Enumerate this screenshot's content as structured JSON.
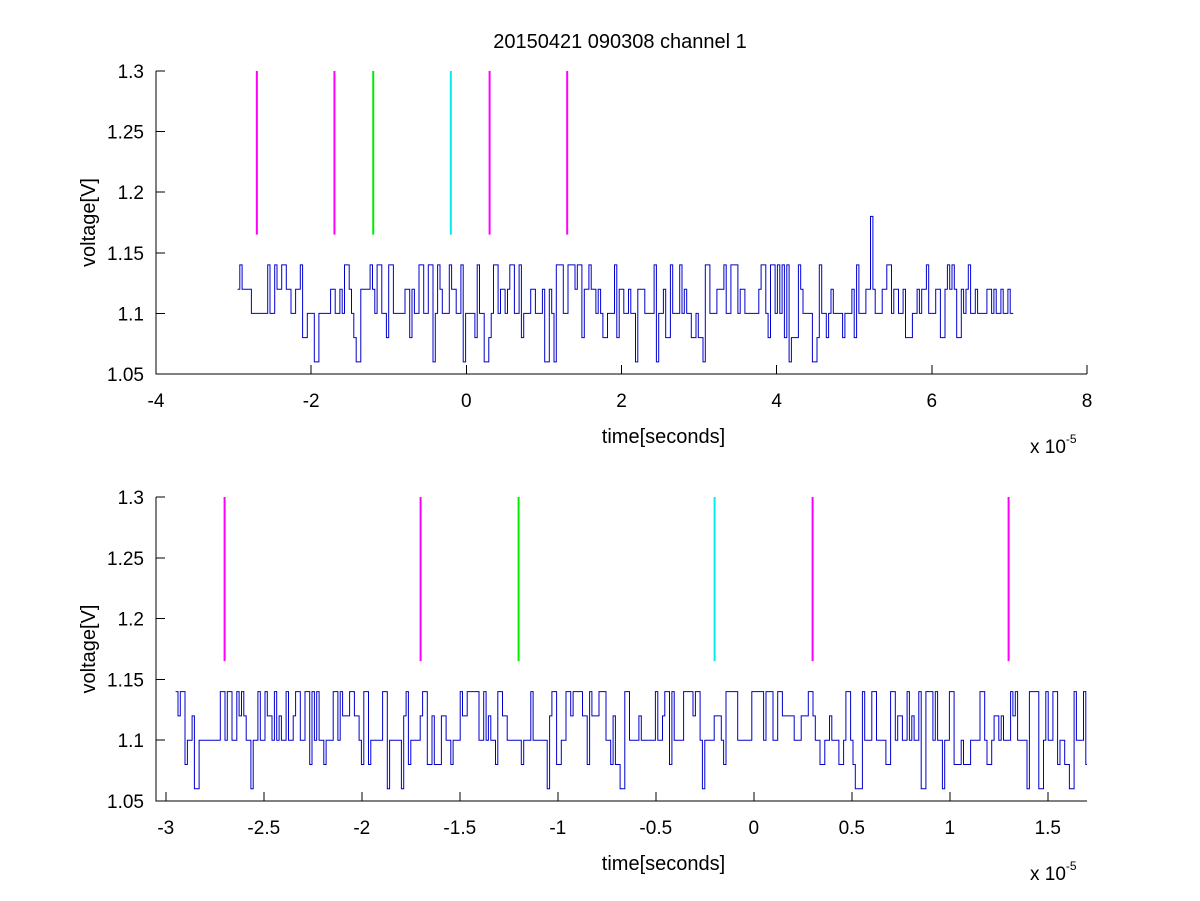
{
  "figure": {
    "title": "20150421 090308 channel 1"
  },
  "chart_data": [
    {
      "type": "line",
      "title": "20150421 090308 channel 1",
      "xlabel": "time[seconds]",
      "ylabel": "voltage[V]",
      "x_exponent_base": "x 10",
      "x_exponent_power": "-5",
      "xlim": [
        -4,
        8
      ],
      "ylim": [
        1.05,
        1.3
      ],
      "xticks": [
        "-4",
        "-2",
        "0",
        "2",
        "4",
        "6",
        "8"
      ],
      "yticks": [
        "1.05",
        "1.1",
        "1.15",
        "1.2",
        "1.25",
        "1.3"
      ],
      "grid": false,
      "series": [
        {
          "kind": "signal",
          "color": "#0000cc",
          "x_range": [
            -2.95,
            7.05
          ],
          "base": 1.1,
          "levels": [
            1.06,
            1.08,
            1.1,
            1.12,
            1.14
          ],
          "spike": {
            "x": 5.2,
            "y": 1.18
          }
        },
        {
          "kind": "markers",
          "color": "#ff00ff",
          "x": [
            -2.7,
            -1.7,
            0.3,
            1.3
          ],
          "y_range": [
            1.165,
            1.3
          ]
        },
        {
          "kind": "markers",
          "color": "#00ee00",
          "x": [
            -1.2
          ],
          "y_range": [
            1.165,
            1.3
          ]
        },
        {
          "kind": "markers",
          "color": "#00eeee",
          "x": [
            -0.2
          ],
          "y_range": [
            1.165,
            1.3
          ]
        }
      ]
    },
    {
      "type": "line",
      "title": "",
      "xlabel": "time[seconds]",
      "ylabel": "voltage[V]",
      "x_exponent_base": "x 10",
      "x_exponent_power": "-5",
      "xlim": [
        -3.05,
        1.7
      ],
      "ylim": [
        1.05,
        1.3
      ],
      "xticks": [
        "-3",
        "-2.5",
        "-2",
        "-1.5",
        "-1",
        "-0.5",
        "0",
        "0.5",
        "1",
        "1.5"
      ],
      "yticks": [
        "1.05",
        "1.1",
        "1.15",
        "1.2",
        "1.25",
        "1.3"
      ],
      "grid": false,
      "series": [
        {
          "kind": "signal",
          "color": "#0000cc",
          "x_range": [
            -2.95,
            1.7
          ],
          "base": 1.1,
          "levels": [
            1.06,
            1.08,
            1.1,
            1.12,
            1.14
          ]
        },
        {
          "kind": "markers",
          "color": "#ff00ff",
          "x": [
            -2.7,
            -1.7,
            0.3,
            1.3
          ],
          "y_range": [
            1.165,
            1.3
          ]
        },
        {
          "kind": "markers",
          "color": "#00ee00",
          "x": [
            -1.2
          ],
          "y_range": [
            1.165,
            1.3
          ]
        },
        {
          "kind": "markers",
          "color": "#00eeee",
          "x": [
            -0.2
          ],
          "y_range": [
            1.165,
            1.3
          ]
        }
      ]
    }
  ]
}
